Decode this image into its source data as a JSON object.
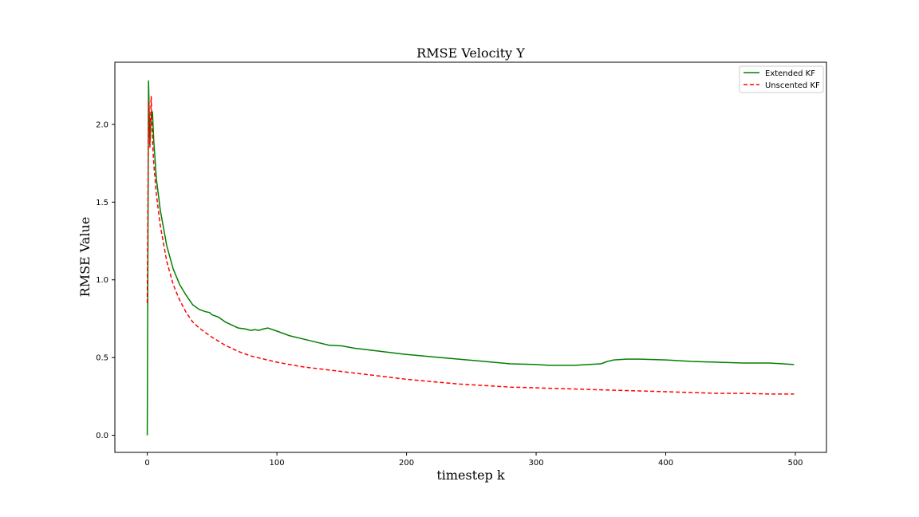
{
  "chart_data": {
    "type": "line",
    "title": "RMSE Velocity Y",
    "xlabel": "timestep k",
    "ylabel": "RMSE Value",
    "xlim": [
      -25,
      524
    ],
    "ylim": [
      -0.11,
      2.4
    ],
    "xticks": [
      0,
      100,
      200,
      300,
      400,
      500
    ],
    "yticks": [
      0.0,
      0.5,
      1.0,
      1.5,
      2.0
    ],
    "xtick_labels": [
      "0",
      "100",
      "200",
      "300",
      "400",
      "500"
    ],
    "ytick_labels": [
      "0.0",
      "0.5",
      "1.0",
      "1.5",
      "2.0"
    ],
    "grid": false,
    "legend_position": "top-right",
    "series": [
      {
        "name": "Extended KF",
        "color": "#008000",
        "style": "solid",
        "x": [
          0,
          1,
          2,
          3,
          4,
          5,
          7,
          10,
          15,
          20,
          25,
          30,
          35,
          40,
          45,
          48,
          50,
          55,
          60,
          65,
          70,
          75,
          80,
          83,
          86,
          90,
          93,
          100,
          110,
          120,
          130,
          140,
          150,
          160,
          170,
          180,
          200,
          220,
          240,
          260,
          280,
          300,
          310,
          320,
          330,
          340,
          350,
          355,
          360,
          370,
          380,
          400,
          420,
          440,
          460,
          480,
          499
        ],
        "y": [
          0.0,
          2.28,
          1.88,
          2.05,
          2.08,
          1.9,
          1.65,
          1.45,
          1.22,
          1.07,
          0.97,
          0.9,
          0.84,
          0.81,
          0.795,
          0.79,
          0.775,
          0.76,
          0.73,
          0.71,
          0.69,
          0.685,
          0.675,
          0.68,
          0.675,
          0.685,
          0.69,
          0.67,
          0.64,
          0.62,
          0.6,
          0.58,
          0.575,
          0.56,
          0.55,
          0.54,
          0.52,
          0.505,
          0.49,
          0.475,
          0.46,
          0.455,
          0.45,
          0.45,
          0.45,
          0.455,
          0.46,
          0.475,
          0.485,
          0.49,
          0.49,
          0.485,
          0.475,
          0.47,
          0.465,
          0.465,
          0.455
        ]
      },
      {
        "name": "Unscented KF",
        "color": "#ff0000",
        "style": "dashed",
        "x": [
          0,
          1,
          2,
          3,
          4,
          5,
          7,
          10,
          15,
          20,
          25,
          30,
          35,
          40,
          45,
          50,
          60,
          70,
          80,
          90,
          100,
          120,
          140,
          160,
          180,
          200,
          220,
          240,
          260,
          280,
          300,
          320,
          340,
          360,
          380,
          400,
          420,
          440,
          460,
          480,
          499
        ],
        "y": [
          0.85,
          2.15,
          1.85,
          2.18,
          1.9,
          1.75,
          1.55,
          1.35,
          1.12,
          0.97,
          0.87,
          0.79,
          0.73,
          0.69,
          0.66,
          0.63,
          0.58,
          0.54,
          0.51,
          0.49,
          0.47,
          0.44,
          0.42,
          0.4,
          0.38,
          0.36,
          0.345,
          0.33,
          0.32,
          0.31,
          0.305,
          0.3,
          0.295,
          0.29,
          0.285,
          0.28,
          0.275,
          0.27,
          0.27,
          0.265,
          0.265
        ]
      }
    ]
  }
}
